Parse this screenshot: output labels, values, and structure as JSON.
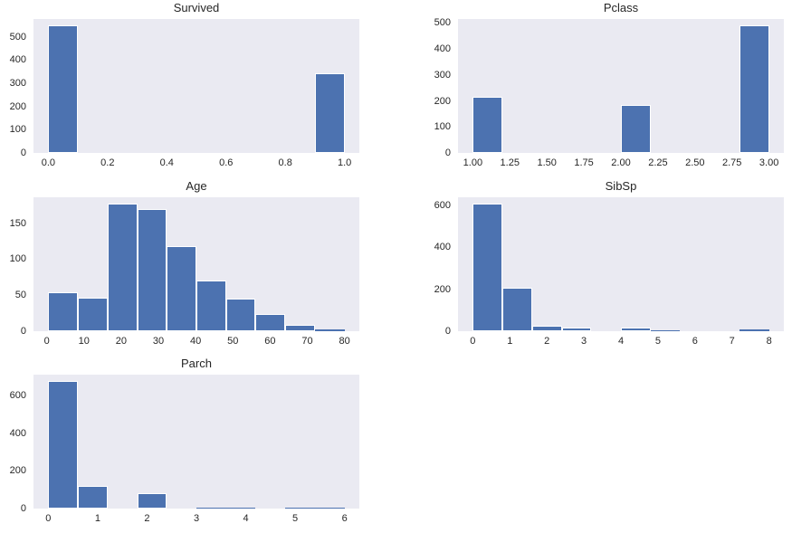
{
  "figure": {
    "background": "#ffffff",
    "axes_background": "#eaeaf2",
    "bar_color": "#4c72b0",
    "bar_edge_color": "#ffffff",
    "text_color": "#262626"
  },
  "chart_data": [
    {
      "type": "bar",
      "variant": "histogram",
      "title": "Survived",
      "bin_start": 0.0,
      "bin_width": 0.1,
      "values": [
        549,
        0,
        0,
        0,
        0,
        0,
        0,
        0,
        0,
        342
      ],
      "xlim": [
        -0.05,
        1.05
      ],
      "ylim": [
        0,
        576.5
      ],
      "xticks": [
        0.0,
        0.2,
        0.4,
        0.6,
        0.8,
        1.0
      ],
      "xtick_labels": [
        "0.0",
        "0.2",
        "0.4",
        "0.6",
        "0.8",
        "1.0"
      ],
      "yticks": [
        0,
        100,
        200,
        300,
        400,
        500
      ],
      "ytick_labels": [
        "0",
        "100",
        "200",
        "300",
        "400",
        "500"
      ],
      "grid": false,
      "legend": false
    },
    {
      "type": "bar",
      "variant": "histogram",
      "title": "Pclass",
      "bin_start": 1.0,
      "bin_width": 0.2,
      "values": [
        216,
        0,
        0,
        0,
        0,
        184,
        0,
        0,
        0,
        491
      ],
      "xlim": [
        0.9,
        3.1
      ],
      "ylim": [
        0,
        515.6
      ],
      "xticks": [
        1.0,
        1.25,
        1.5,
        1.75,
        2.0,
        2.25,
        2.5,
        2.75,
        3.0
      ],
      "xtick_labels": [
        "1.00",
        "1.25",
        "1.50",
        "1.75",
        "2.00",
        "2.25",
        "2.50",
        "2.75",
        "3.00"
      ],
      "yticks": [
        0,
        100,
        200,
        300,
        400,
        500
      ],
      "ytick_labels": [
        "0",
        "100",
        "200",
        "300",
        "400",
        "500"
      ],
      "grid": false,
      "legend": false
    },
    {
      "type": "bar",
      "variant": "histogram",
      "title": "Age",
      "bin_start": 0.42,
      "bin_width": 7.958,
      "values": [
        54,
        46,
        177,
        169,
        118,
        70,
        45,
        24,
        9,
        2
      ],
      "xlim": [
        -3.56,
        83.98
      ],
      "ylim": [
        0,
        185.9
      ],
      "xticks": [
        0,
        10,
        20,
        30,
        40,
        50,
        60,
        70,
        80
      ],
      "xtick_labels": [
        "0",
        "10",
        "20",
        "30",
        "40",
        "50",
        "60",
        "70",
        "80"
      ],
      "yticks": [
        0,
        50,
        100,
        150
      ],
      "ytick_labels": [
        "0",
        "50",
        "100",
        "150"
      ],
      "grid": false,
      "legend": false
    },
    {
      "type": "bar",
      "variant": "histogram",
      "title": "SibSp",
      "bin_start": 0.0,
      "bin_width": 0.8,
      "values": [
        608,
        209,
        28,
        16,
        0,
        18,
        5,
        0,
        0,
        7
      ],
      "xlim": [
        -0.4,
        8.4
      ],
      "ylim": [
        0,
        638.4
      ],
      "xticks": [
        0,
        1,
        2,
        3,
        4,
        5,
        6,
        7,
        8
      ],
      "xtick_labels": [
        "0",
        "1",
        "2",
        "3",
        "4",
        "5",
        "6",
        "7",
        "8"
      ],
      "yticks": [
        0,
        200,
        400,
        600
      ],
      "ytick_labels": [
        "0",
        "200",
        "400",
        "600"
      ],
      "grid": false,
      "legend": false
    },
    {
      "type": "bar",
      "variant": "histogram",
      "title": "Parch",
      "bin_start": 0.0,
      "bin_width": 0.6,
      "values": [
        678,
        118,
        0,
        80,
        0,
        5,
        4,
        0,
        5,
        1
      ],
      "xlim": [
        -0.3,
        6.3
      ],
      "ylim": [
        0,
        711.9
      ],
      "xticks": [
        0,
        1,
        2,
        3,
        4,
        5,
        6
      ],
      "xtick_labels": [
        "0",
        "1",
        "2",
        "3",
        "4",
        "5",
        "6"
      ],
      "yticks": [
        0,
        200,
        400,
        600
      ],
      "ytick_labels": [
        "0",
        "200",
        "400",
        "600"
      ],
      "grid": false,
      "legend": false
    }
  ]
}
